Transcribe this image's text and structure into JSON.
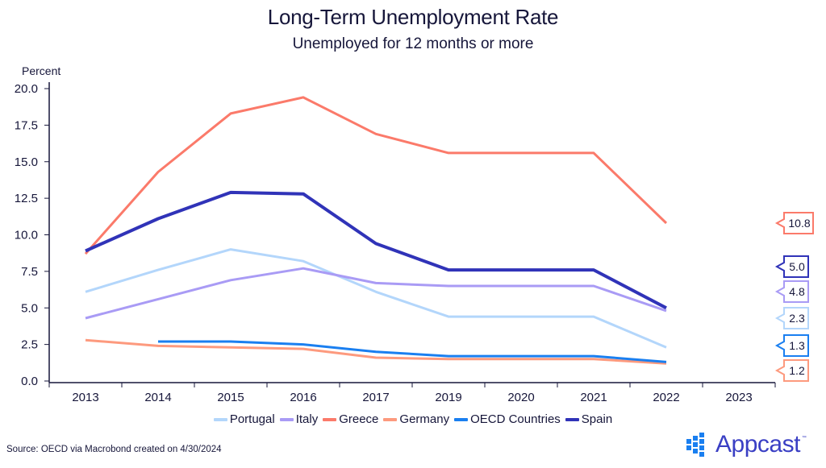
{
  "chart_data": {
    "type": "line",
    "title": "Long-Term Unemployment Rate",
    "subtitle": "Unemployed for 12 months or more",
    "xlabel": "",
    "ylabel": "Percent",
    "ylim": [
      0,
      20
    ],
    "yticks": [
      "0.0",
      "2.5",
      "5.0",
      "7.5",
      "10.0",
      "12.5",
      "15.0",
      "17.5",
      "20.0"
    ],
    "categories": [
      "2013",
      "2014",
      "2015",
      "2016",
      "2017",
      "2019",
      "2020",
      "2021",
      "2022",
      "2023"
    ],
    "grid": false,
    "legend_position": "bottom",
    "series": [
      {
        "name": "Portugal",
        "color": "#b3d6fb",
        "width": "normal",
        "values": [
          6.1,
          7.6,
          9.0,
          8.2,
          6.1,
          4.4,
          4.4,
          4.4,
          2.3,
          null
        ],
        "end_label": "2.3"
      },
      {
        "name": "Italy",
        "color": "#a99bf5",
        "width": "normal",
        "values": [
          4.3,
          5.6,
          6.9,
          7.7,
          6.7,
          6.5,
          6.5,
          6.5,
          4.8,
          null
        ],
        "end_label": "4.8"
      },
      {
        "name": "Greece",
        "color": "#fb7a6a",
        "width": "normal",
        "values": [
          8.7,
          14.3,
          18.3,
          19.4,
          16.9,
          15.6,
          15.6,
          15.6,
          10.8,
          null
        ],
        "end_label": "10.8"
      },
      {
        "name": "Germany",
        "color": "#fd9a7e",
        "width": "normal",
        "values": [
          2.8,
          2.4,
          2.3,
          2.2,
          1.6,
          1.5,
          1.5,
          1.5,
          1.2,
          null
        ],
        "end_label": "1.2"
      },
      {
        "name": "OECD Countries",
        "color": "#1a7ff0",
        "width": "normal",
        "values": [
          null,
          2.7,
          2.7,
          2.5,
          2.0,
          1.7,
          1.7,
          1.7,
          1.3,
          null
        ],
        "end_label": "1.3"
      },
      {
        "name": "Spain",
        "color": "#3033b8",
        "width": "thick",
        "values": [
          8.9,
          11.1,
          12.9,
          12.8,
          9.4,
          7.6,
          7.6,
          7.6,
          5.0,
          null
        ],
        "end_label": "5.0"
      }
    ],
    "end_label_order": [
      "Greece",
      "Spain",
      "Italy",
      "Portugal",
      "OECD Countries",
      "Germany"
    ]
  },
  "footer": {
    "source": "Source: OECD via Macrobond created on 4/30/2024",
    "logo_text": "Appcast",
    "logo_tm": "™"
  }
}
